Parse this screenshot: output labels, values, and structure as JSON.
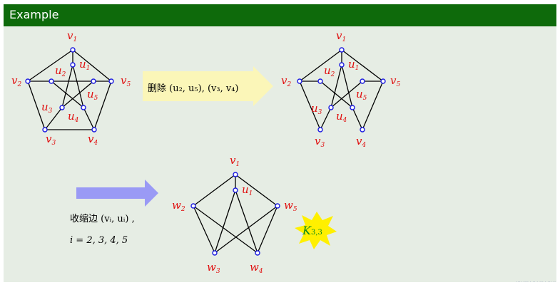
{
  "slide": {
    "title": "Example",
    "footer": "···· ···· · ·· · ··· · ··· ··"
  },
  "step1": {
    "action": "删除 (u₂, u₅), (v₃, v₄)"
  },
  "step2": {
    "action": "收缩边 (vᵢ, uᵢ) ,",
    "index": "i = 2, 3, 4, 5"
  },
  "result": {
    "base": "K",
    "sub": "3,3"
  },
  "graph_original": {
    "labels": {
      "v1": "v",
      "v1s": "1",
      "v2": "v",
      "v2s": "2",
      "v3": "v",
      "v3s": "3",
      "v4": "v",
      "v4s": "4",
      "v5": "v",
      "v5s": "5",
      "u1": "u",
      "u1s": "1",
      "u2": "u",
      "u2s": "2",
      "u3": "u",
      "u3s": "3",
      "u4": "u",
      "u4s": "4",
      "u5": "u",
      "u5s": "5"
    }
  },
  "graph_deleted": {
    "labels": {
      "v1": "v",
      "v1s": "1",
      "v2": "v",
      "v2s": "2",
      "v3": "v",
      "v3s": "3",
      "v4": "v",
      "v4s": "4",
      "v5": "v",
      "v5s": "5",
      "u1": "u",
      "u1s": "1",
      "u2": "u",
      "u2s": "2",
      "u3": "u",
      "u3s": "3",
      "u4": "u",
      "u4s": "4",
      "u5": "u",
      "u5s": "5"
    }
  },
  "graph_contracted": {
    "labels": {
      "v1": "v",
      "v1s": "1",
      "u1": "u",
      "u1s": "1",
      "w2": "w",
      "w2s": "2",
      "w3": "w",
      "w3s": "3",
      "w4": "w",
      "w4s": "4",
      "w5": "w",
      "w5s": "5"
    }
  },
  "colors": {
    "title_bar": "#0e6a0b",
    "slide_bg": "#e6ede4",
    "vertex_label": "#e01010",
    "vertex_stroke": "#1a1ae0",
    "arrow_yellow": "#fbf6b8",
    "arrow_blue": "#9a9af5",
    "star": "#fff000",
    "k33_text": "#0a8a1a"
  }
}
